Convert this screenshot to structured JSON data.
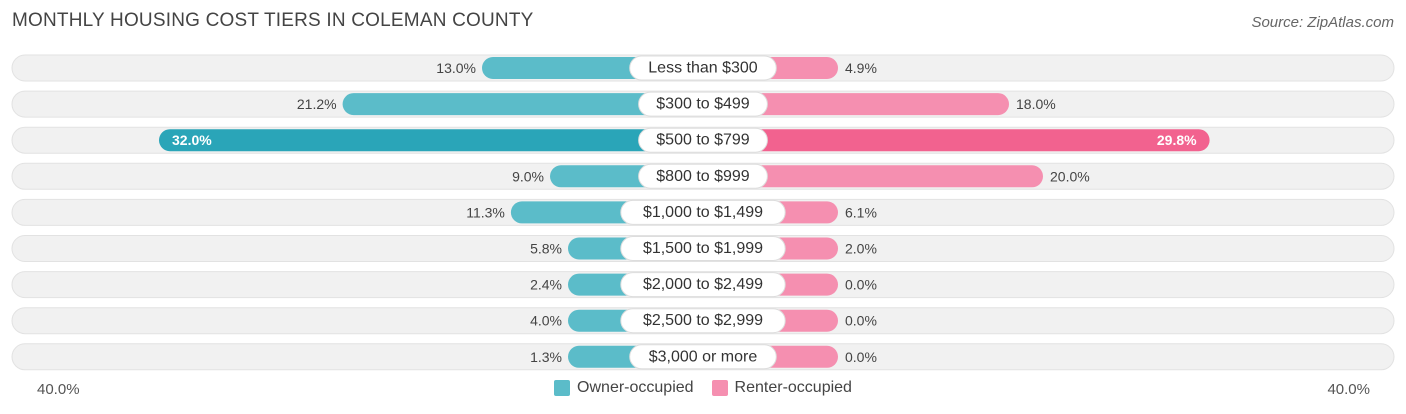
{
  "title": "MONTHLY HOUSING COST TIERS IN COLEMAN COUNTY",
  "source": "Source: ZipAtlas.com",
  "colors": {
    "owner": "#5bbcc9",
    "owner_strong": "#2aa5b8",
    "renter": "#f58fb0",
    "renter_strong": "#f2628f",
    "track": "#f1f1f1"
  },
  "axis": {
    "left_label": "40.0%",
    "right_label": "40.0%"
  },
  "legend": {
    "owner": "Owner-occupied",
    "renter": "Renter-occupied"
  },
  "chart_data": {
    "type": "bar",
    "orientation": "diverging-horizontal",
    "title": "MONTHLY HOUSING COST TIERS IN COLEMAN COUNTY",
    "xlim": [
      -40,
      40
    ],
    "categories": [
      "Less than $300",
      "$300 to $499",
      "$500 to $799",
      "$800 to $999",
      "$1,000 to $1,499",
      "$1,500 to $1,999",
      "$2,000 to $2,499",
      "$2,500 to $2,999",
      "$3,000 or more"
    ],
    "series": [
      {
        "name": "Owner-occupied",
        "values": [
          13.0,
          21.2,
          32.0,
          9.0,
          11.3,
          5.8,
          2.4,
          4.0,
          1.3
        ],
        "labels": [
          "13.0%",
          "21.2%",
          "32.0%",
          "9.0%",
          "11.3%",
          "5.8%",
          "2.4%",
          "4.0%",
          "1.3%"
        ]
      },
      {
        "name": "Renter-occupied",
        "values": [
          4.9,
          18.0,
          29.8,
          20.0,
          6.1,
          2.0,
          0.0,
          0.0,
          0.0
        ],
        "labels": [
          "4.9%",
          "18.0%",
          "29.8%",
          "20.0%",
          "6.1%",
          "2.0%",
          "0.0%",
          "0.0%",
          "0.0%"
        ]
      }
    ],
    "highlight_index": 2
  }
}
